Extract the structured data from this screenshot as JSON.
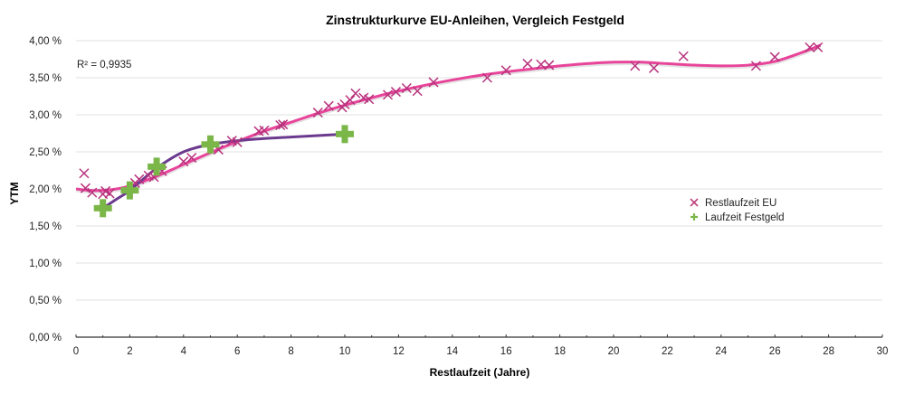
{
  "chart_data": {
    "type": "scatter",
    "title": "Zinstrukturkurve EU-Anleihen, Vergleich Festgeld",
    "xlabel": "Restlaufzeit (Jahre)",
    "ylabel": "YTM",
    "xlim": [
      0,
      30
    ],
    "ylim": [
      0,
      4.0
    ],
    "x_ticks": [
      "0",
      "2",
      "4",
      "6",
      "8",
      "10",
      "12",
      "14",
      "16",
      "18",
      "20",
      "22",
      "24",
      "26",
      "28",
      "30"
    ],
    "y_ticks": [
      "0,00 %",
      "0,50 %",
      "1,00 %",
      "1,50 %",
      "2,00 %",
      "2,50 %",
      "3,00 %",
      "3,50 %",
      "4,00 %"
    ],
    "grid": true,
    "legend_position": "right-middle",
    "annotation": "R² = 0,9935",
    "colors": {
      "eu_marker": "#b8327d",
      "eu_trend": "#e8449a",
      "festgeld_marker": "#7ab648",
      "festgeld_line": "#6b3a8e",
      "grid": "#e2e2e2",
      "axis": "#333333"
    },
    "series": [
      {
        "name": "Restlaufzeit EU",
        "marker": "x",
        "points": [
          [
            0.3,
            2.21
          ],
          [
            0.35,
            2.01
          ],
          [
            0.6,
            1.95
          ],
          [
            1.0,
            1.93
          ],
          [
            1.1,
            1.97
          ],
          [
            1.25,
            1.94
          ],
          [
            2.2,
            2.08
          ],
          [
            2.35,
            2.13
          ],
          [
            2.7,
            2.18
          ],
          [
            2.9,
            2.16
          ],
          [
            3.2,
            2.24
          ],
          [
            4.0,
            2.37
          ],
          [
            4.3,
            2.42
          ],
          [
            5.3,
            2.53
          ],
          [
            5.8,
            2.65
          ],
          [
            6.0,
            2.63
          ],
          [
            6.8,
            2.78
          ],
          [
            7.0,
            2.79
          ],
          [
            7.6,
            2.86
          ],
          [
            7.7,
            2.87
          ],
          [
            9.0,
            3.03
          ],
          [
            9.4,
            3.12
          ],
          [
            9.9,
            3.1
          ],
          [
            10.0,
            3.14
          ],
          [
            10.2,
            3.2
          ],
          [
            10.4,
            3.29
          ],
          [
            10.7,
            3.23
          ],
          [
            10.9,
            3.21
          ],
          [
            11.6,
            3.27
          ],
          [
            11.9,
            3.31
          ],
          [
            12.3,
            3.36
          ],
          [
            12.7,
            3.32
          ],
          [
            13.3,
            3.44
          ],
          [
            15.3,
            3.5
          ],
          [
            16.0,
            3.6
          ],
          [
            16.8,
            3.69
          ],
          [
            17.3,
            3.68
          ],
          [
            17.6,
            3.67
          ],
          [
            20.8,
            3.66
          ],
          [
            21.5,
            3.63
          ],
          [
            22.6,
            3.79
          ],
          [
            25.3,
            3.66
          ],
          [
            26.0,
            3.78
          ],
          [
            27.3,
            3.91
          ],
          [
            27.6,
            3.91
          ]
        ]
      },
      {
        "name": "Laufzeit Festgeld",
        "marker": "plus",
        "points": [
          [
            1,
            1.74
          ],
          [
            2,
            1.98
          ],
          [
            3,
            2.3
          ],
          [
            5,
            2.6
          ],
          [
            10,
            2.74
          ]
        ]
      }
    ],
    "trendline": {
      "series": "Restlaufzeit EU",
      "type": "polynomial",
      "r_squared": 0.9935,
      "points": [
        [
          0,
          2.0
        ],
        [
          0.5,
          1.98
        ],
        [
          1,
          1.98
        ],
        [
          1.5,
          2.0
        ],
        [
          2,
          2.04
        ],
        [
          3,
          2.17
        ],
        [
          4,
          2.33
        ],
        [
          5,
          2.49
        ],
        [
          6,
          2.64
        ],
        [
          7,
          2.78
        ],
        [
          8,
          2.9
        ],
        [
          9,
          3.02
        ],
        [
          10,
          3.13
        ],
        [
          11,
          3.23
        ],
        [
          12,
          3.32
        ],
        [
          13,
          3.4
        ],
        [
          14,
          3.47
        ],
        [
          15,
          3.53
        ],
        [
          16,
          3.58
        ],
        [
          17,
          3.62
        ],
        [
          18,
          3.66
        ],
        [
          19,
          3.69
        ],
        [
          20,
          3.71
        ],
        [
          21,
          3.71
        ],
        [
          22,
          3.69
        ],
        [
          23,
          3.67
        ],
        [
          24,
          3.66
        ],
        [
          25,
          3.67
        ],
        [
          26,
          3.72
        ],
        [
          27,
          3.84
        ],
        [
          27.7,
          3.94
        ]
      ]
    },
    "festgeld_line_points": [
      [
        1,
        1.74
      ],
      [
        1.5,
        1.86
      ],
      [
        2,
        1.98
      ],
      [
        3,
        2.28
      ],
      [
        4,
        2.5
      ],
      [
        5,
        2.6
      ],
      [
        6,
        2.65
      ],
      [
        7,
        2.68
      ],
      [
        8,
        2.7
      ],
      [
        9,
        2.72
      ],
      [
        10,
        2.74
      ]
    ]
  }
}
